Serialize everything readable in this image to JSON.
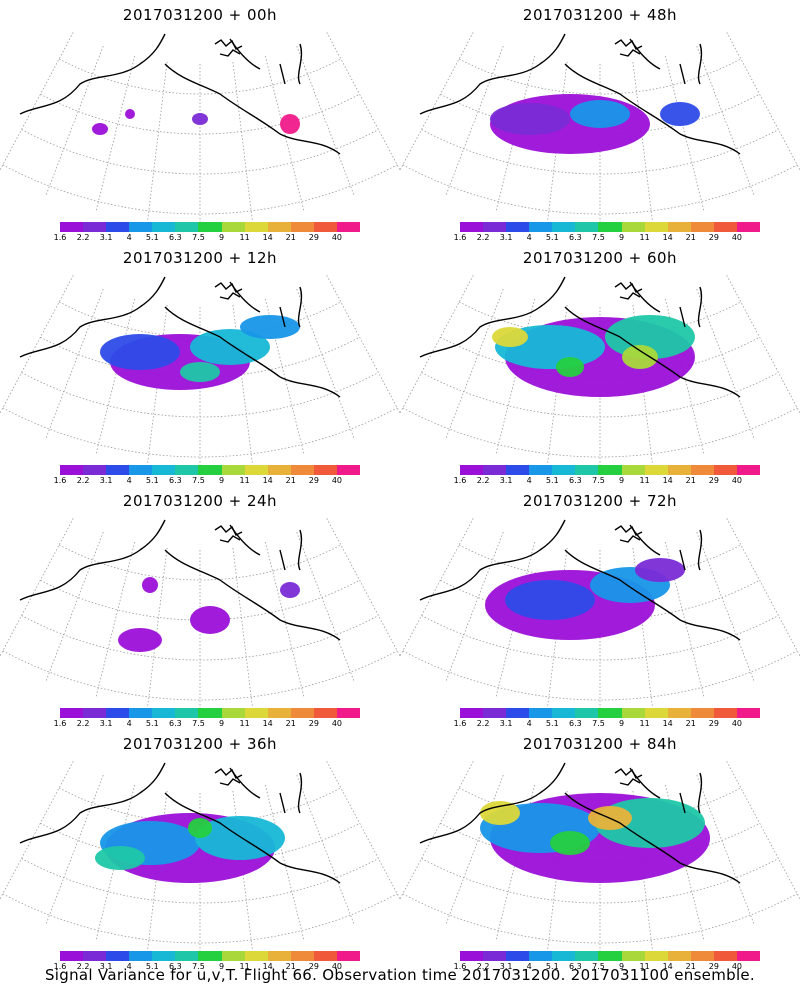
{
  "panels": [
    {
      "title": "2017031200 + 00h",
      "level": 0
    },
    {
      "title": "2017031200 + 48h",
      "level": 4
    },
    {
      "title": "2017031200 + 12h",
      "level": 1
    },
    {
      "title": "2017031200 + 60h",
      "level": 5
    },
    {
      "title": "2017031200 + 24h",
      "level": 2
    },
    {
      "title": "2017031200 + 72h",
      "level": 6
    },
    {
      "title": "2017031200 + 36h",
      "level": 3
    },
    {
      "title": "2017031200 + 84h",
      "level": 7
    }
  ],
  "colorbar": {
    "colors": [
      "#9b10d8",
      "#7a2bd6",
      "#2d4be8",
      "#1896e8",
      "#17b8d6",
      "#1fc7a8",
      "#25d040",
      "#a9d83a",
      "#dcd83a",
      "#e8b23a",
      "#ee8a3a",
      "#f05a3a",
      "#f01a8a"
    ],
    "labels": [
      "1.6",
      "2.2",
      "3.1",
      "4",
      "5.1",
      "6.3",
      "7.5",
      "9",
      "11",
      "14",
      "21",
      "29",
      "40"
    ]
  },
  "caption": "Signal Variance for u,v,T. Flight 66. Observation time 2017031200. 2017031100 ensemble."
}
